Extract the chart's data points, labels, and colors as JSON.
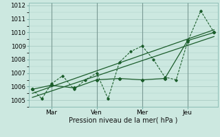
{
  "xlabel": "Pression niveau de la mer( hPa )",
  "bg_color": "#cce8e0",
  "grid_color": "#aaccc4",
  "line_color": "#1a5c2a",
  "ylim": [
    1004.5,
    1012.2
  ],
  "xlim": [
    -2,
    98
  ],
  "yticks": [
    1005,
    1006,
    1007,
    1008,
    1009,
    1010,
    1011,
    1012
  ],
  "xtick_positions": [
    10,
    34,
    58,
    82
  ],
  "xtick_labels": [
    "Mar",
    "Ven",
    "Mer",
    "Jeu"
  ],
  "vline_positions": [
    10,
    34,
    58,
    82
  ],
  "series1_x": [
    0,
    5,
    10,
    16,
    22,
    28,
    34,
    40,
    46,
    52,
    58,
    64,
    70,
    76,
    82,
    89,
    96
  ],
  "series1_y": [
    1005.8,
    1005.1,
    1006.2,
    1006.8,
    1005.8,
    1006.5,
    1007.0,
    1005.1,
    1007.8,
    1008.6,
    1009.0,
    1008.0,
    1006.7,
    1006.5,
    1009.3,
    1011.6,
    1010.0
  ],
  "series2_x": [
    0,
    10,
    22,
    34,
    46,
    58,
    70,
    82,
    96
  ],
  "series2_y": [
    1005.8,
    1006.1,
    1005.9,
    1006.5,
    1006.6,
    1006.5,
    1006.6,
    1009.4,
    1010.0
  ],
  "series3_x": [
    0,
    96
  ],
  "series3_y": [
    1005.5,
    1010.2
  ],
  "series4_x": [
    0,
    96
  ],
  "series4_y": [
    1005.2,
    1009.7
  ]
}
